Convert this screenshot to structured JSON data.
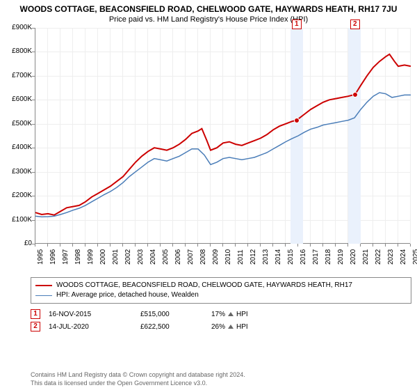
{
  "title": "WOODS COTTAGE, BEACONSFIELD ROAD, CHELWOOD GATE, HAYWARDS HEATH, RH17 7JU",
  "subtitle": "Price paid vs. HM Land Registry's House Price Index (HPI)",
  "chart": {
    "type": "line",
    "x_years": [
      1995,
      1996,
      1997,
      1998,
      1999,
      2000,
      2001,
      2002,
      2003,
      2004,
      2005,
      2006,
      2007,
      2008,
      2009,
      2010,
      2011,
      2012,
      2013,
      2014,
      2015,
      2016,
      2017,
      2018,
      2019,
      2020,
      2021,
      2022,
      2023,
      2024,
      2025
    ],
    "x_min": 1995,
    "x_max": 2025,
    "y_ticks": [
      0,
      100,
      200,
      300,
      400,
      500,
      600,
      700,
      800,
      900
    ],
    "y_labels": [
      "£0",
      "£100K",
      "£200K",
      "£300K",
      "£400K",
      "£500K",
      "£600K",
      "£700K",
      "£800K",
      "£900K"
    ],
    "y_min": 0,
    "y_max": 900000,
    "label_fontsize": 10,
    "grid_color": "#eeeeee",
    "axis_color": "#888888",
    "background_color": "#ffffff",
    "series": [
      {
        "name": "property",
        "label": "WOODS COTTAGE, BEACONSFIELD ROAD, CHELWOOD GATE, HAYWARDS HEATH, RH17",
        "color": "#cc0000",
        "line_width": 2,
        "data": [
          [
            1995,
            130000
          ],
          [
            1995.5,
            122000
          ],
          [
            1996,
            125000
          ],
          [
            1996.5,
            120000
          ],
          [
            1997,
            135000
          ],
          [
            1997.5,
            150000
          ],
          [
            1998,
            155000
          ],
          [
            1998.5,
            160000
          ],
          [
            1999,
            175000
          ],
          [
            1999.5,
            195000
          ],
          [
            2000,
            210000
          ],
          [
            2000.5,
            225000
          ],
          [
            2001,
            240000
          ],
          [
            2001.5,
            260000
          ],
          [
            2002,
            280000
          ],
          [
            2002.5,
            310000
          ],
          [
            2003,
            340000
          ],
          [
            2003.5,
            365000
          ],
          [
            2004,
            385000
          ],
          [
            2004.5,
            400000
          ],
          [
            2005,
            395000
          ],
          [
            2005.5,
            390000
          ],
          [
            2006,
            400000
          ],
          [
            2006.5,
            415000
          ],
          [
            2007,
            435000
          ],
          [
            2007.5,
            460000
          ],
          [
            2008,
            470000
          ],
          [
            2008.3,
            480000
          ],
          [
            2008.7,
            430000
          ],
          [
            2009,
            390000
          ],
          [
            2009.5,
            400000
          ],
          [
            2010,
            420000
          ],
          [
            2010.5,
            425000
          ],
          [
            2011,
            415000
          ],
          [
            2011.5,
            410000
          ],
          [
            2012,
            420000
          ],
          [
            2012.5,
            430000
          ],
          [
            2013,
            440000
          ],
          [
            2013.5,
            455000
          ],
          [
            2014,
            475000
          ],
          [
            2014.5,
            490000
          ],
          [
            2015,
            500000
          ],
          [
            2015.5,
            510000
          ],
          [
            2015.9,
            515000
          ],
          [
            2016,
            520000
          ],
          [
            2016.5,
            540000
          ],
          [
            2017,
            560000
          ],
          [
            2017.5,
            575000
          ],
          [
            2018,
            590000
          ],
          [
            2018.5,
            600000
          ],
          [
            2019,
            605000
          ],
          [
            2019.5,
            610000
          ],
          [
            2020,
            615000
          ],
          [
            2020.55,
            622500
          ],
          [
            2021,
            660000
          ],
          [
            2021.5,
            700000
          ],
          [
            2022,
            735000
          ],
          [
            2022.5,
            760000
          ],
          [
            2023,
            780000
          ],
          [
            2023.3,
            790000
          ],
          [
            2023.7,
            760000
          ],
          [
            2024,
            740000
          ],
          [
            2024.5,
            745000
          ],
          [
            2025,
            740000
          ]
        ]
      },
      {
        "name": "hpi",
        "label": "HPI: Average price, detached house, Wealden",
        "color": "#4a7db8",
        "line_width": 1.5,
        "data": [
          [
            1995,
            115000
          ],
          [
            1995.5,
            112000
          ],
          [
            1996,
            113000
          ],
          [
            1996.5,
            115000
          ],
          [
            1997,
            122000
          ],
          [
            1997.5,
            130000
          ],
          [
            1998,
            140000
          ],
          [
            1998.5,
            148000
          ],
          [
            1999,
            160000
          ],
          [
            1999.5,
            175000
          ],
          [
            2000,
            190000
          ],
          [
            2000.5,
            205000
          ],
          [
            2001,
            218000
          ],
          [
            2001.5,
            235000
          ],
          [
            2002,
            255000
          ],
          [
            2002.5,
            280000
          ],
          [
            2003,
            300000
          ],
          [
            2003.5,
            320000
          ],
          [
            2004,
            340000
          ],
          [
            2004.5,
            355000
          ],
          [
            2005,
            350000
          ],
          [
            2005.5,
            345000
          ],
          [
            2006,
            355000
          ],
          [
            2006.5,
            365000
          ],
          [
            2007,
            380000
          ],
          [
            2007.5,
            395000
          ],
          [
            2008,
            395000
          ],
          [
            2008.5,
            370000
          ],
          [
            2009,
            330000
          ],
          [
            2009.5,
            340000
          ],
          [
            2010,
            355000
          ],
          [
            2010.5,
            360000
          ],
          [
            2011,
            355000
          ],
          [
            2011.5,
            350000
          ],
          [
            2012,
            355000
          ],
          [
            2012.5,
            360000
          ],
          [
            2013,
            370000
          ],
          [
            2013.5,
            380000
          ],
          [
            2014,
            395000
          ],
          [
            2014.5,
            410000
          ],
          [
            2015,
            425000
          ],
          [
            2015.5,
            438000
          ],
          [
            2016,
            450000
          ],
          [
            2016.5,
            465000
          ],
          [
            2017,
            478000
          ],
          [
            2017.5,
            485000
          ],
          [
            2018,
            495000
          ],
          [
            2018.5,
            500000
          ],
          [
            2019,
            505000
          ],
          [
            2019.5,
            510000
          ],
          [
            2020,
            515000
          ],
          [
            2020.5,
            525000
          ],
          [
            2021,
            560000
          ],
          [
            2021.5,
            590000
          ],
          [
            2022,
            615000
          ],
          [
            2022.5,
            630000
          ],
          [
            2023,
            625000
          ],
          [
            2023.5,
            610000
          ],
          [
            2024,
            615000
          ],
          [
            2024.5,
            620000
          ],
          [
            2025,
            620000
          ]
        ]
      }
    ],
    "bands": [
      {
        "from_year": 2015.4,
        "to_year": 2016.4,
        "color": "#eaf1fc"
      },
      {
        "from_year": 2020.0,
        "to_year": 2021.0,
        "color": "#eaf1fc"
      }
    ],
    "markers": [
      {
        "num": "1",
        "year": 2015.88,
        "value": 515000
      },
      {
        "num": "2",
        "year": 2020.54,
        "value": 622500
      }
    ]
  },
  "sales": [
    {
      "num": "1",
      "date": "16-NOV-2015",
      "price": "£515,000",
      "pct": "17%",
      "pct_label": "HPI"
    },
    {
      "num": "2",
      "date": "14-JUL-2020",
      "price": "£622,500",
      "pct": "26%",
      "pct_label": "HPI"
    }
  ],
  "footer": {
    "line1": "Contains HM Land Registry data © Crown copyright and database right 2024.",
    "line2": "This data is licensed under the Open Government Licence v3.0."
  }
}
